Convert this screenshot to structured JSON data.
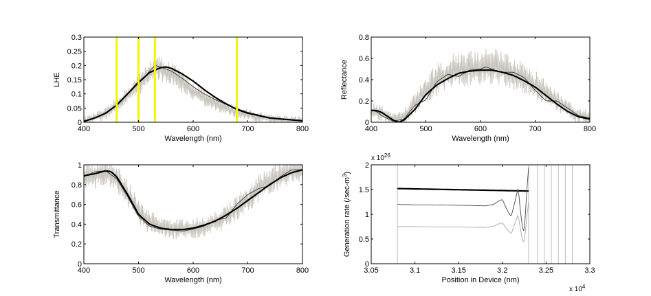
{
  "chart_data": [
    {
      "type": "line",
      "title": "",
      "xlabel": "Wavelength (nm)",
      "ylabel": "LHE",
      "xlim": [
        400,
        800
      ],
      "ylim": [
        0,
        0.3
      ],
      "xticks": [
        400,
        500,
        600,
        700,
        800
      ],
      "yticks": [
        0,
        0.05,
        0.1,
        0.15,
        0.2,
        0.25,
        0.3
      ],
      "ytick_labels": [
        "0",
        "0.05",
        "0.1",
        "0.15",
        "0.2",
        "0.25",
        "0.3"
      ],
      "vlines": {
        "color": "#f5f500",
        "x": [
          460,
          500,
          530,
          680
        ]
      },
      "series": [
        {
          "style": "noisy",
          "color": "#c8c4bc",
          "x": [
            400,
            440,
            460,
            480,
            500,
            520,
            540,
            560,
            580,
            600,
            620,
            640,
            660,
            680,
            700,
            740,
            800
          ],
          "y": [
            0.003,
            0.03,
            0.06,
            0.095,
            0.13,
            0.175,
            0.19,
            0.17,
            0.14,
            0.11,
            0.085,
            0.065,
            0.05,
            0.037,
            0.026,
            0.012,
            0.004
          ],
          "noise": 0.045
        },
        {
          "style": "thin",
          "color": "#333333",
          "x": [
            400,
            440,
            460,
            480,
            500,
            510,
            520,
            530,
            540,
            560,
            580,
            600,
            620,
            640,
            660,
            680,
            700,
            740,
            800
          ],
          "y": [
            0.003,
            0.03,
            0.06,
            0.1,
            0.145,
            0.155,
            0.18,
            0.2,
            0.195,
            0.18,
            0.155,
            0.125,
            0.1,
            0.08,
            0.063,
            0.048,
            0.035,
            0.016,
            0.004
          ]
        },
        {
          "style": "bold",
          "color": "#000000",
          "x": [
            400,
            420,
            440,
            460,
            480,
            500,
            520,
            540,
            550,
            560,
            580,
            600,
            620,
            640,
            660,
            680,
            700,
            740,
            800
          ],
          "y": [
            0.003,
            0.015,
            0.032,
            0.06,
            0.1,
            0.14,
            0.175,
            0.192,
            0.195,
            0.19,
            0.17,
            0.145,
            0.115,
            0.088,
            0.065,
            0.045,
            0.032,
            0.015,
            0.005
          ]
        }
      ]
    },
    {
      "type": "line",
      "title": "",
      "xlabel": "Wavelength (nm)",
      "ylabel": "Reflectance",
      "xlim": [
        400,
        800
      ],
      "ylim": [
        0,
        0.8
      ],
      "xticks": [
        400,
        500,
        600,
        700,
        800
      ],
      "yticks": [
        0,
        0.2,
        0.4,
        0.6,
        0.8
      ],
      "ytick_labels": [
        "0",
        "0.2",
        "0.4",
        "0.6",
        "0.8"
      ],
      "series": [
        {
          "style": "noisy",
          "color": "#c8c4bc",
          "x": [
            400,
            420,
            440,
            460,
            480,
            500,
            520,
            540,
            560,
            580,
            600,
            620,
            640,
            660,
            680,
            700,
            720,
            740,
            760,
            780,
            800
          ],
          "y": [
            0.1,
            0.08,
            0.02,
            0.05,
            0.18,
            0.3,
            0.4,
            0.45,
            0.5,
            0.5,
            0.52,
            0.53,
            0.5,
            0.46,
            0.42,
            0.35,
            0.27,
            0.2,
            0.13,
            0.06,
            0.05
          ],
          "noise": 0.17
        },
        {
          "style": "thin",
          "color": "#333333",
          "x": [
            400,
            410,
            420,
            440,
            460,
            480,
            500,
            520,
            540,
            560,
            580,
            600,
            610,
            620,
            640,
            660,
            680,
            700,
            720,
            740,
            760,
            780,
            800
          ],
          "y": [
            0.11,
            0.1,
            0.06,
            0.01,
            0.03,
            0.16,
            0.21,
            0.38,
            0.45,
            0.43,
            0.49,
            0.5,
            0.52,
            0.5,
            0.47,
            0.47,
            0.42,
            0.3,
            0.2,
            0.2,
            0.13,
            0.06,
            0.04
          ]
        },
        {
          "style": "bold",
          "color": "#000000",
          "x": [
            400,
            410,
            420,
            440,
            450,
            460,
            480,
            500,
            520,
            540,
            560,
            580,
            600,
            620,
            640,
            660,
            680,
            700,
            720,
            740,
            760,
            780,
            800
          ],
          "y": [
            0.11,
            0.11,
            0.09,
            0.02,
            0.0,
            0.02,
            0.12,
            0.26,
            0.35,
            0.41,
            0.46,
            0.48,
            0.49,
            0.49,
            0.47,
            0.44,
            0.39,
            0.33,
            0.25,
            0.17,
            0.1,
            0.05,
            0.03
          ]
        }
      ]
    },
    {
      "type": "line",
      "title": "",
      "xlabel": "Wavelength (nm)",
      "ylabel": "Transmittance",
      "xlim": [
        400,
        800
      ],
      "ylim": [
        0,
        1
      ],
      "xticks": [
        400,
        500,
        600,
        700,
        800
      ],
      "yticks": [
        0,
        0.2,
        0.4,
        0.6,
        0.8,
        1
      ],
      "ytick_labels": [
        "0",
        "0.2",
        "0.4",
        "0.6",
        "0.8",
        "1"
      ],
      "series": [
        {
          "style": "noisy",
          "color": "#c8c4bc",
          "x": [
            400,
            420,
            440,
            460,
            480,
            500,
            520,
            540,
            560,
            580,
            600,
            620,
            640,
            660,
            680,
            700,
            720,
            740,
            760,
            780,
            800
          ],
          "y": [
            0.88,
            0.9,
            0.93,
            0.88,
            0.7,
            0.52,
            0.42,
            0.37,
            0.35,
            0.35,
            0.36,
            0.38,
            0.42,
            0.48,
            0.56,
            0.66,
            0.76,
            0.84,
            0.9,
            0.94,
            0.96
          ],
          "noise": 0.14
        },
        {
          "style": "thin",
          "color": "#333333",
          "x": [
            400,
            420,
            440,
            460,
            480,
            500,
            520,
            540,
            560,
            580,
            600,
            620,
            640,
            660,
            680,
            700,
            720,
            740,
            760,
            780,
            800
          ],
          "y": [
            0.88,
            0.93,
            0.94,
            0.86,
            0.68,
            0.48,
            0.38,
            0.35,
            0.34,
            0.33,
            0.35,
            0.38,
            0.44,
            0.46,
            0.6,
            0.7,
            0.76,
            0.79,
            0.88,
            0.95,
            0.95
          ]
        },
        {
          "style": "bold",
          "color": "#000000",
          "x": [
            400,
            420,
            440,
            450,
            460,
            480,
            500,
            520,
            540,
            560,
            580,
            600,
            620,
            640,
            660,
            680,
            700,
            720,
            740,
            760,
            780,
            800
          ],
          "y": [
            0.89,
            0.91,
            0.94,
            0.93,
            0.88,
            0.7,
            0.5,
            0.4,
            0.36,
            0.345,
            0.345,
            0.36,
            0.39,
            0.43,
            0.49,
            0.56,
            0.64,
            0.72,
            0.8,
            0.87,
            0.92,
            0.95
          ]
        }
      ]
    },
    {
      "type": "line",
      "title": "",
      "xlabel": "Position in Device (nm)",
      "ylabel": "Generation rate (/sec-m",
      "ylabel_sup": "3",
      "ylabel_tail": ")",
      "xlim": [
        3.05,
        3.3
      ],
      "ylim": [
        0,
        2
      ],
      "xticks": [
        3.05,
        3.1,
        3.15,
        3.2,
        3.25,
        3.3
      ],
      "xtick_labels": [
        "3.05",
        "3.1",
        "3.15",
        "3.2",
        "3.25",
        "3.3"
      ],
      "yticks": [
        0,
        0.5,
        1,
        1.5,
        2
      ],
      "ytick_labels": [
        "0",
        "0.5",
        "1",
        "1.5",
        "2"
      ],
      "x_multiplier": "x 10",
      "x_multiplier_exp": "4",
      "y_multiplier": "x 10",
      "y_multiplier_exp": "26",
      "vlines": {
        "color": "#bdbdbd",
        "x": [
          3.08,
          3.23,
          3.24,
          3.248,
          3.256,
          3.264,
          3.272,
          3.28
        ]
      },
      "series": [
        {
          "style": "bold",
          "color": "#000000",
          "x": [
            3.08,
            3.23
          ],
          "y": [
            1.52,
            1.47
          ]
        },
        {
          "style": "thin",
          "color": "#444444",
          "x": [
            3.08,
            3.1,
            3.12,
            3.14,
            3.16,
            3.18,
            3.19,
            3.195,
            3.2,
            3.205,
            3.21,
            3.215,
            3.218,
            3.221,
            3.224,
            3.226,
            3.228,
            3.23
          ],
          "y": [
            1.2,
            1.19,
            1.19,
            1.185,
            1.18,
            1.17,
            1.2,
            1.26,
            1.3,
            1.1,
            0.95,
            1.3,
            1.55,
            1.0,
            0.6,
            0.9,
            1.5,
            1.95
          ]
        },
        {
          "style": "thin",
          "color": "#a8a8a8",
          "x": [
            3.08,
            3.1,
            3.12,
            3.14,
            3.16,
            3.18,
            3.19,
            3.195,
            3.2,
            3.205,
            3.21,
            3.215,
            3.218,
            3.221,
            3.224,
            3.226,
            3.228,
            3.23
          ],
          "y": [
            0.75,
            0.75,
            0.745,
            0.74,
            0.74,
            0.735,
            0.76,
            0.8,
            0.83,
            0.7,
            0.6,
            0.85,
            1.0,
            0.65,
            0.4,
            0.6,
            0.95,
            1.25
          ]
        }
      ]
    }
  ]
}
